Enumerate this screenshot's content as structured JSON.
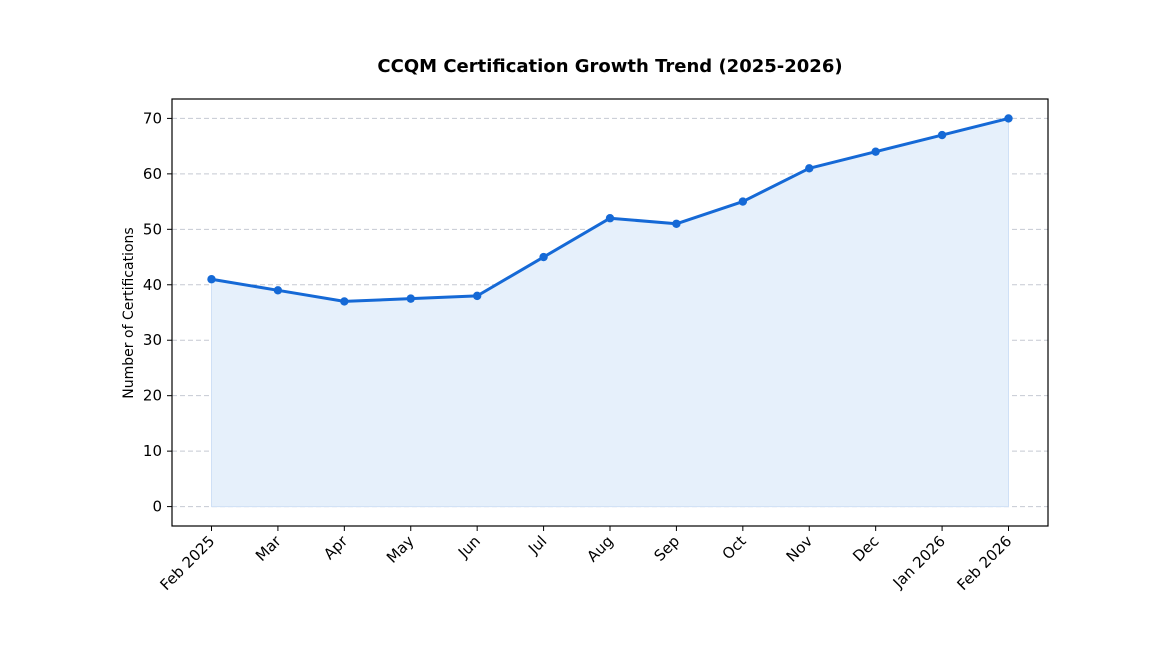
{
  "chart_data": {
    "type": "line",
    "title": "CCQM Certification Growth Trend (2025-2026)",
    "xlabel": "",
    "ylabel": "Number of Certifications",
    "categories": [
      "Feb 2025",
      "Mar",
      "Apr",
      "May",
      "Jun",
      "Jul",
      "Aug",
      "Sep",
      "Oct",
      "Nov",
      "Dec",
      "Jan 2026",
      "Feb 2026"
    ],
    "series": [
      {
        "values": [
          41,
          39,
          37,
          37.5,
          38,
          45,
          52,
          51,
          55,
          61,
          64,
          67,
          70
        ]
      }
    ],
    "ylim": [
      -3.5,
      73.5
    ],
    "yticks": [
      0,
      10,
      20,
      30,
      40,
      50,
      60,
      70
    ],
    "grid": "horizontal dashed",
    "fill_under_line": true,
    "colors": {
      "line": "#1569d6",
      "fill": "#e6f0fb",
      "grid": "#c5c9d2"
    }
  }
}
